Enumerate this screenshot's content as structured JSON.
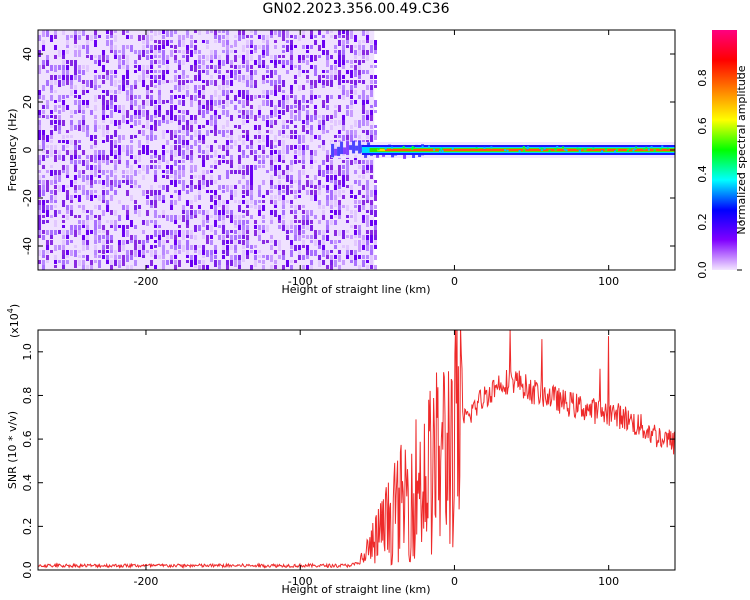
{
  "title": "GN02.2023.356.00.49.C36",
  "colors": {
    "signal_line": "#ee2a2a",
    "noise_purple": "#8a2be2",
    "colorbar_stops": [
      "#f3e6ff",
      "#8000ff",
      "#0000ff",
      "#00ffff",
      "#00ff00",
      "#ffff00",
      "#ff8000",
      "#ff0000",
      "#ff0080"
    ]
  },
  "chart_data": [
    {
      "type": "heatmap",
      "xlabel": "Height of straight line (km)",
      "ylabel": "Frequency (Hz)",
      "xlim": [
        -270,
        143
      ],
      "ylim": [
        -50,
        50
      ],
      "x_ticks": [
        -200,
        -100,
        0,
        100
      ],
      "x_tick_labels": [
        "-200",
        "-100",
        "0",
        "100"
      ],
      "y_ticks": [
        -40,
        -20,
        0,
        20,
        40
      ],
      "y_tick_labels": [
        "-40",
        "-20",
        "0",
        "20",
        "40"
      ],
      "noise_region_x": [
        -270,
        -52
      ],
      "signal_frequency_hz": 0,
      "colorbar": {
        "label": "Normalized spectral amplitude",
        "range": [
          0,
          1
        ],
        "ticks": [
          0.0,
          0.2,
          0.4,
          0.6,
          0.8
        ],
        "tick_labels": [
          "0.0",
          "0.2",
          "0.4",
          "0.6",
          "0.8"
        ]
      }
    },
    {
      "type": "line",
      "xlabel": "Height of straight line (km)",
      "ylabel": "SNR (10 * v/v)",
      "y_scale_label": "(x10",
      "y_scale_exp": "4",
      "xlim": [
        -270,
        143
      ],
      "ylim": [
        0,
        1.1
      ],
      "x_ticks": [
        -200,
        -100,
        0,
        100
      ],
      "x_tick_labels": [
        "-200",
        "-100",
        "0",
        "100"
      ],
      "y_ticks": [
        0.0,
        0.2,
        0.4,
        0.6,
        0.8,
        1.0
      ],
      "y_tick_labels": [
        "0.0",
        "0.2",
        "0.4",
        "0.6",
        "0.8",
        "1.0"
      ],
      "series": [
        {
          "x": [
            -270,
            -250,
            -200,
            -150,
            -100,
            -70,
            -62,
            -55,
            -50,
            -40,
            -30,
            -20,
            -10,
            0,
            10,
            20,
            30,
            40,
            50,
            60,
            70,
            80,
            90,
            100,
            110,
            120,
            130,
            143
          ],
          "y": [
            0.02,
            0.02,
            0.02,
            0.02,
            0.02,
            0.02,
            0.03,
            0.1,
            0.15,
            0.25,
            0.35,
            0.42,
            0.5,
            0.62,
            0.72,
            0.8,
            0.86,
            0.87,
            0.82,
            0.8,
            0.77,
            0.75,
            0.73,
            0.72,
            0.7,
            0.66,
            0.62,
            0.58
          ]
        }
      ]
    }
  ]
}
